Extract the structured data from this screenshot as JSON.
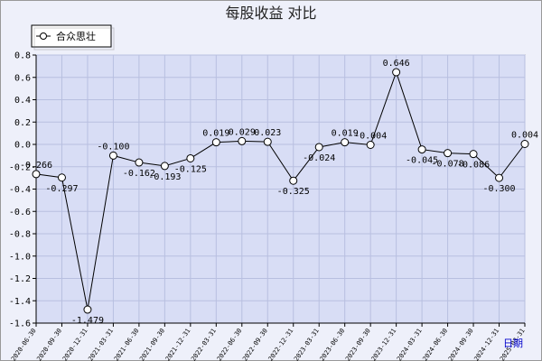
{
  "chart_data": {
    "type": "line",
    "title": "每股收益  对比",
    "legend": {
      "position": "top-left",
      "entries": [
        "合众思壮"
      ]
    },
    "x_corner_label": "日期",
    "ylim": [
      -1.6,
      0.8
    ],
    "yticks": [
      "0.8",
      "0.6",
      "0.4",
      "0.2",
      "0.0",
      "-0.2",
      "-0.4",
      "-0.6",
      "-0.8",
      "-1.0",
      "-1.2",
      "-1.4",
      "-1.6"
    ],
    "grid": true,
    "categories": [
      "2020-06-30",
      "2020-09-30",
      "2020-12-31",
      "2021-03-31",
      "2021-06-30",
      "2021-09-30",
      "2021-12-31",
      "2022-03-31",
      "2022-06-30",
      "2022-09-30",
      "2022-12-31",
      "2023-03-31",
      "2023-06-30",
      "2023-09-30",
      "2023-12-31",
      "2024-03-31",
      "2024-06-30",
      "2024-09-30",
      "2024-12-31",
      "2025-03-31"
    ],
    "series": [
      {
        "name": "合众思壮",
        "values": [
          -0.266,
          -0.297,
          -1.479,
          -0.1,
          -0.162,
          -0.193,
          -0.125,
          0.019,
          0.029,
          0.023,
          -0.325,
          -0.024,
          0.019,
          -0.004,
          0.646,
          -0.045,
          -0.078,
          -0.086,
          -0.3,
          0.004
        ],
        "labels": [
          "-0.266",
          "-0.297",
          "-1.479",
          "-0.100",
          "-0.162",
          "-0.193",
          "-0.125",
          "0.019",
          "0.029",
          "0.023",
          "-0.325",
          "-0.024",
          "0.019",
          "-0.004",
          "0.646",
          "-0.045",
          "-0.078",
          "-0.086",
          "-0.300",
          "0.004"
        ]
      }
    ]
  }
}
